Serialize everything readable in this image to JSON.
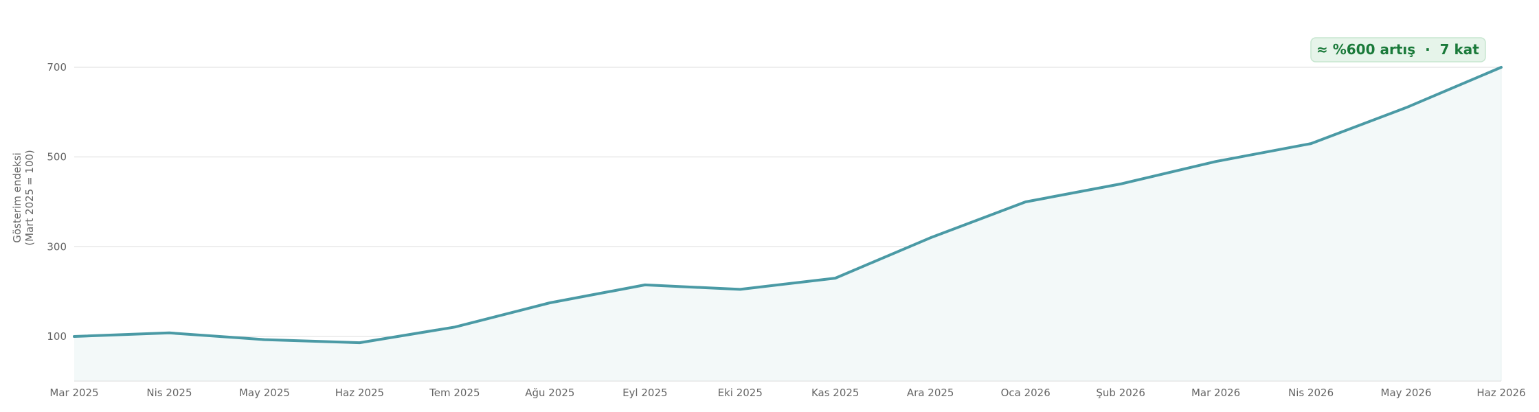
{
  "chart_data": {
    "type": "area",
    "title": "",
    "xlabel": "",
    "ylabel": [
      "Gösterim endeksi",
      "(Mart 2025 = 100)"
    ],
    "categories": [
      "Mar 2025",
      "Nis 2025",
      "May 2025",
      "Haz 2025",
      "Tem 2025",
      "Ağu 2025",
      "Eyl 2025",
      "Eki 2025",
      "Kas 2025",
      "Ara 2025",
      "Oca 2026",
      "Şub 2026",
      "Mar 2026",
      "Nis 2026",
      "May 2026",
      "Haz 2026"
    ],
    "series": [
      {
        "values": [
          100,
          108,
          93,
          86,
          121,
          175,
          215,
          205,
          230,
          320,
          400,
          440,
          490,
          530,
          610,
          700
        ]
      }
    ],
    "ylim": [
      0,
      800
    ],
    "yticks": [
      100,
      300,
      500,
      700
    ],
    "grid": "horizontal",
    "annotation": "≈ %600 artış  ·  7 kat",
    "colors": {
      "line": "#4a9aa5",
      "fill": "#f3f9f9",
      "grid": "#dcdcdc",
      "annotation_bg": "#e6f4ea",
      "annotation_border": "#c7e6d0",
      "annotation_text": "#1a7a3a"
    }
  }
}
